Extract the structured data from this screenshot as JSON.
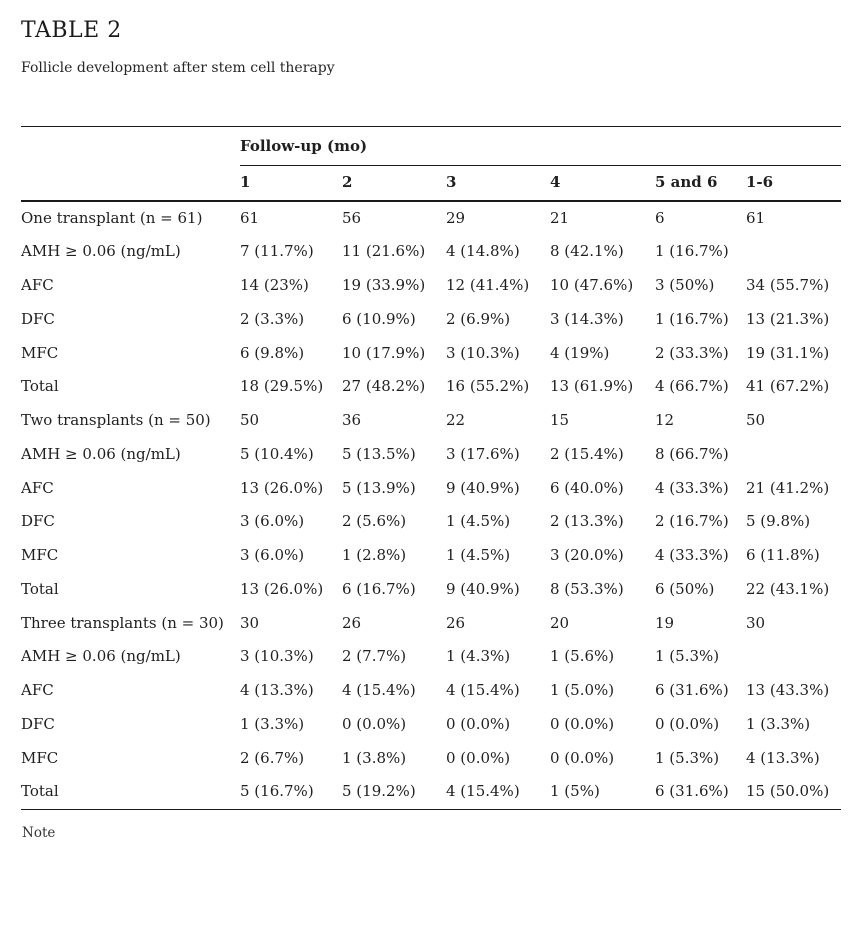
{
  "page": {
    "title": "TABLE 2",
    "caption": "Follicle development after stem cell therapy",
    "note": "Note"
  },
  "table": {
    "group_header": "Follow-up (mo)",
    "columns": [
      "1",
      "2",
      "3",
      "4",
      "5 and 6",
      "1-6"
    ],
    "sections": [
      {
        "label": "One transplant (n = 61)",
        "counts": [
          "61",
          "56",
          "29",
          "21",
          "6",
          "61"
        ],
        "rows": [
          {
            "label": "AMH ≥ 0.06 (ng/mL)",
            "indent": 1,
            "values": [
              "7 (11.7%)",
              "11 (21.6%)",
              "4 (14.8%)",
              "8 (42.1%)",
              "1 (16.7%)",
              ""
            ]
          },
          {
            "label": "AFC",
            "indent": 2,
            "values": [
              "14 (23%)",
              "19 (33.9%)",
              "12 (41.4%)",
              "10 (47.6%)",
              "3 (50%)",
              "34 (55.7%)"
            ]
          },
          {
            "label": "DFC",
            "indent": 2,
            "values": [
              "2 (3.3%)",
              "6 (10.9%)",
              "2 (6.9%)",
              "3 (14.3%)",
              "1 (16.7%)",
              "13 (21.3%)"
            ]
          },
          {
            "label": "MFC",
            "indent": 2,
            "values": [
              "6 (9.8%)",
              "10 (17.9%)",
              "3 (10.3%)",
              "4 (19%)",
              "2 (33.3%)",
              "19 (31.1%)"
            ]
          },
          {
            "label": "Total",
            "indent": 2,
            "values": [
              "18 (29.5%)",
              "27 (48.2%)",
              "16 (55.2%)",
              "13 (61.9%)",
              "4 (66.7%)",
              "41 (67.2%)"
            ]
          }
        ]
      },
      {
        "label": "Two transplants (n = 50)",
        "counts": [
          "50",
          "36",
          "22",
          "15",
          "12",
          "50"
        ],
        "rows": [
          {
            "label": "AMH ≥ 0.06 (ng/mL)",
            "indent": 1,
            "values": [
              "5 (10.4%)",
              "5 (13.5%)",
              "3 (17.6%)",
              "2 (15.4%)",
              "8 (66.7%)",
              ""
            ]
          },
          {
            "label": "AFC",
            "indent": 2,
            "values": [
              "13 (26.0%)",
              "5 (13.9%)",
              "9 (40.9%)",
              "6 (40.0%)",
              "4 (33.3%)",
              "21 (41.2%)"
            ]
          },
          {
            "label": "DFC",
            "indent": 2,
            "values": [
              "3 (6.0%)",
              "2 (5.6%)",
              "1 (4.5%)",
              "2 (13.3%)",
              "2 (16.7%)",
              "5 (9.8%)"
            ]
          },
          {
            "label": "MFC",
            "indent": 2,
            "values": [
              "3 (6.0%)",
              "1 (2.8%)",
              "1 (4.5%)",
              "3 (20.0%)",
              "4 (33.3%)",
              "6 (11.8%)"
            ]
          },
          {
            "label": "Total",
            "indent": 2,
            "values": [
              "13 (26.0%)",
              "6 (16.7%)",
              "9 (40.9%)",
              "8 (53.3%)",
              "6 (50%)",
              "22 (43.1%)"
            ]
          }
        ]
      },
      {
        "label": "Three transplants (n = 30)",
        "counts": [
          "30",
          "26",
          "26",
          "20",
          "19",
          "30"
        ],
        "rows": [
          {
            "label": "AMH ≥ 0.06 (ng/mL)",
            "indent": 1,
            "values": [
              "3 (10.3%)",
              "2 (7.7%)",
              "1 (4.3%)",
              "1 (5.6%)",
              "1 (5.3%)",
              ""
            ]
          },
          {
            "label": "AFC",
            "indent": 2,
            "values": [
              "4 (13.3%)",
              "4 (15.4%)",
              "4 (15.4%)",
              "1 (5.0%)",
              "6 (31.6%)",
              "13 (43.3%)"
            ]
          },
          {
            "label": "DFC",
            "indent": 2,
            "values": [
              "1 (3.3%)",
              "0 (0.0%)",
              "0 (0.0%)",
              "0 (0.0%)",
              "0 (0.0%)",
              "1 (3.3%)"
            ]
          },
          {
            "label": "MFC",
            "indent": 2,
            "values": [
              "2 (6.7%)",
              "1 (3.8%)",
              "0 (0.0%)",
              "0 (0.0%)",
              "1 (5.3%)",
              "4 (13.3%)"
            ]
          },
          {
            "label": "Total",
            "indent": 2,
            "values": [
              "5 (16.7%)",
              "5 (19.2%)",
              "4 (15.4%)",
              "1 (5%)",
              "6 (31.6%)",
              "15 (50.0%)"
            ]
          }
        ]
      }
    ]
  }
}
